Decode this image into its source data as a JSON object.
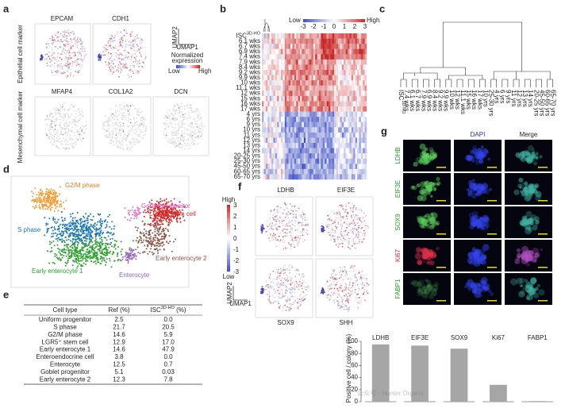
{
  "panel_labels": [
    "a",
    "b",
    "c",
    "d",
    "e",
    "f",
    "g"
  ],
  "panel_a": {
    "genes_top": [
      "EPCAM",
      "CDH1"
    ],
    "genes_bottom": [
      "MFAP4",
      "COL1A2",
      "DCN"
    ],
    "row_labels": [
      "Epithelial cell marker",
      "Mesenchymal cell marker"
    ],
    "axis_y": "UMAP2",
    "axis_x": "UMAP1",
    "legend_title": [
      "Normalized",
      "expression"
    ],
    "legend_low": "Low",
    "legend_high": "High"
  },
  "panel_b": {
    "legend_low": "Low",
    "legend_high": "High",
    "legend_ticks": [
      -3,
      -2,
      -1,
      0,
      1,
      2,
      3
    ],
    "first_row": {
      "base": "ISC",
      "sup": "3D-HO"
    },
    "rows": [
      "6.1 wks",
      "6.7 wks",
      "6.9 wks",
      "7.4 wks",
      "7.9 wks",
      "8.4 wks",
      "9.2 wks",
      "9.9 wks",
      "10 wks",
      "11.1 wks",
      "12 wks",
      "15 wks",
      "16 wks",
      "17 wks",
      "4 yrs",
      "6 yrs",
      "9 yrs",
      "10 yrs",
      "11 yrs",
      "12 yrs",
      "13 yrs",
      "14 yrs",
      "20-25 yrs",
      "25-30 yrs",
      "45-50 yrs",
      "60-65 yrs",
      "65-70 yrs"
    ]
  },
  "panel_c": {
    "first_leaf": {
      "base": "ISC",
      "sup": "3D-HO"
    },
    "leaves": [
      "7.4 wks",
      "6.1 wks",
      "6.7 wks",
      "7.9 wks",
      "6.9 wks",
      "8.4 wks",
      "9.2 wks",
      "9.9 wks",
      "10 wks",
      "12 wks",
      "11.1 wks",
      "15 wks",
      "16 wks",
      "17 wks",
      "10 yrs",
      "25-30 yrs",
      "4 yrs",
      "6 yrs",
      "9 yrs",
      "11 yrs",
      "12 yrs",
      "13 yrs",
      "14 yrs",
      "20-25 yrs",
      "45-50 yrs",
      "60-65 yrs",
      "65-70 yrs"
    ]
  },
  "panel_d": {
    "clusters": [
      "G2/M phase",
      "Goblet progenitor",
      "LGR5⁺ stem cell",
      "S phase",
      "Early enterocyte 1",
      "Early enterocyte 2",
      "Enterocyte"
    ]
  },
  "panel_e": {
    "header": [
      "Cell type",
      "Ref (%)",
      {
        "base": "ISC",
        "sup": "3D-HO",
        "after": " (%)"
      }
    ],
    "rows": [
      [
        "Uniform progenitor",
        "2.5",
        "0.0"
      ],
      [
        "S phase",
        "21.7",
        "20.5"
      ],
      [
        "G2/M phase",
        "14.6",
        "5.9"
      ],
      [
        "LGR5⁺ stem cell",
        "12.9",
        "17.0"
      ],
      [
        "Early enterocyte 1",
        "14.6",
        "47.9"
      ],
      [
        "Enteroendocrine cell",
        "3.8",
        "0.0"
      ],
      [
        "Enterocyte",
        "12.5",
        "0.7"
      ],
      [
        "Goblet progenitor",
        "5.1",
        "0.03"
      ],
      [
        "Early enterocyte 2",
        "12.3",
        "7.8"
      ]
    ]
  },
  "panel_f": {
    "genes": [
      "LDHB",
      "EIF3E",
      "SOX9",
      "SHH"
    ],
    "legend_high": "High",
    "legend_low": "Low",
    "legend_ticks": [
      3,
      2,
      1,
      0,
      -1,
      -2,
      -3
    ],
    "axis_y": "UMAP2",
    "axis_x": "UMAP1"
  },
  "panel_g": {
    "columns": [
      "DAPI",
      "Merge"
    ],
    "rows": [
      "LDHB",
      "EIF3E",
      "SOX9",
      "Ki67",
      "FABP1"
    ]
  },
  "chart_data": {
    "type": "bar",
    "ylabel": "Positive cell / colony (%)",
    "categories": [
      "LDHB",
      "EIF3E",
      "SOX9",
      "Ki67",
      "FABP1"
    ],
    "values": [
      95,
      93,
      88,
      28,
      1
    ],
    "color": "#a6a6a6",
    "ylim": [
      0,
      100
    ],
    "yticks": [
      0,
      20,
      40,
      60,
      80,
      100
    ]
  },
  "watermark": "公众号 · Hunter Organs"
}
